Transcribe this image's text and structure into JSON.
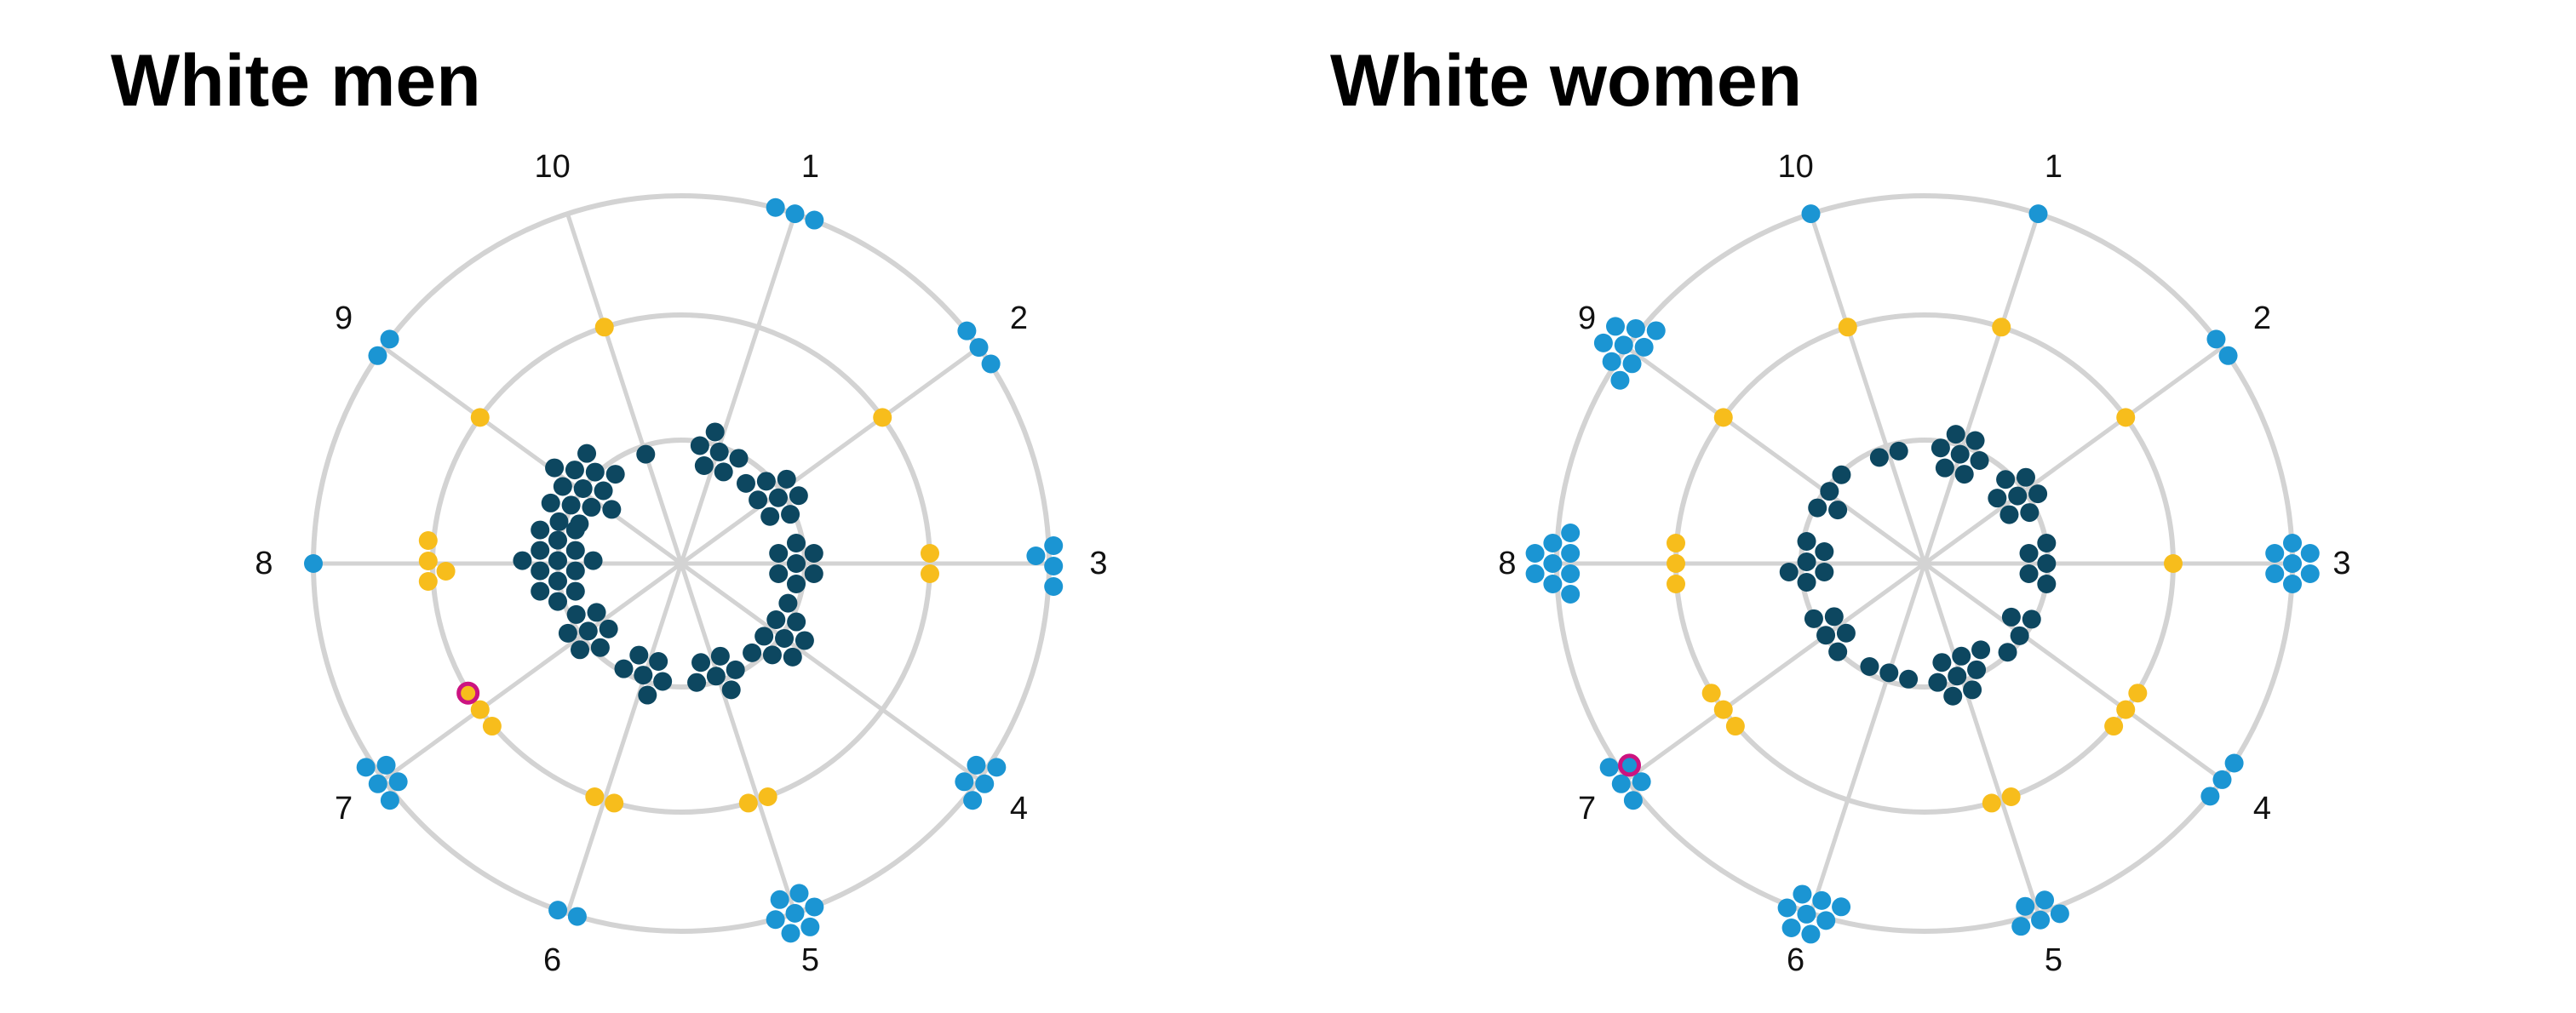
{
  "chart_data": [
    {
      "type": "radial-dot",
      "title": "White men",
      "spokes": [
        "1",
        "2",
        "3",
        "4",
        "5",
        "6",
        "7",
        "8",
        "9",
        "10"
      ],
      "rings": 3,
      "colors": {
        "outer": "#1b95d3",
        "middle": "#f7bd1c",
        "inner": "#0d4760",
        "highlight": "#cc1380",
        "grid": "#d3d3d3"
      },
      "counts": {
        "outer": [
          3,
          3,
          4,
          5,
          7,
          2,
          5,
          1,
          2,
          0
        ],
        "middle": [
          0,
          1,
          2,
          0,
          2,
          2,
          3,
          4,
          1,
          1
        ],
        "inner": [
          6,
          8,
          7,
          9,
          6,
          6,
          7,
          14,
          14,
          1
        ]
      },
      "highlight": {
        "spoke": "7",
        "ring": "middle"
      }
    },
    {
      "type": "radial-dot",
      "title": "White women",
      "spokes": [
        "1",
        "2",
        "3",
        "4",
        "5",
        "6",
        "7",
        "8",
        "9",
        "10"
      ],
      "rings": 3,
      "colors": {
        "outer": "#1b95d3",
        "middle": "#f7bd1c",
        "inner": "#0d4760",
        "highlight": "#cc1380",
        "grid": "#d3d3d3"
      },
      "counts": {
        "outer": [
          1,
          2,
          7,
          3,
          5,
          8,
          5,
          9,
          9,
          1
        ],
        "middle": [
          1,
          1,
          1,
          3,
          2,
          0,
          3,
          3,
          1,
          1
        ],
        "inner": [
          7,
          7,
          5,
          4,
          8,
          3,
          5,
          6,
          4,
          2
        ]
      },
      "highlight": {
        "spoke": "7",
        "ring": "outer"
      }
    }
  ]
}
